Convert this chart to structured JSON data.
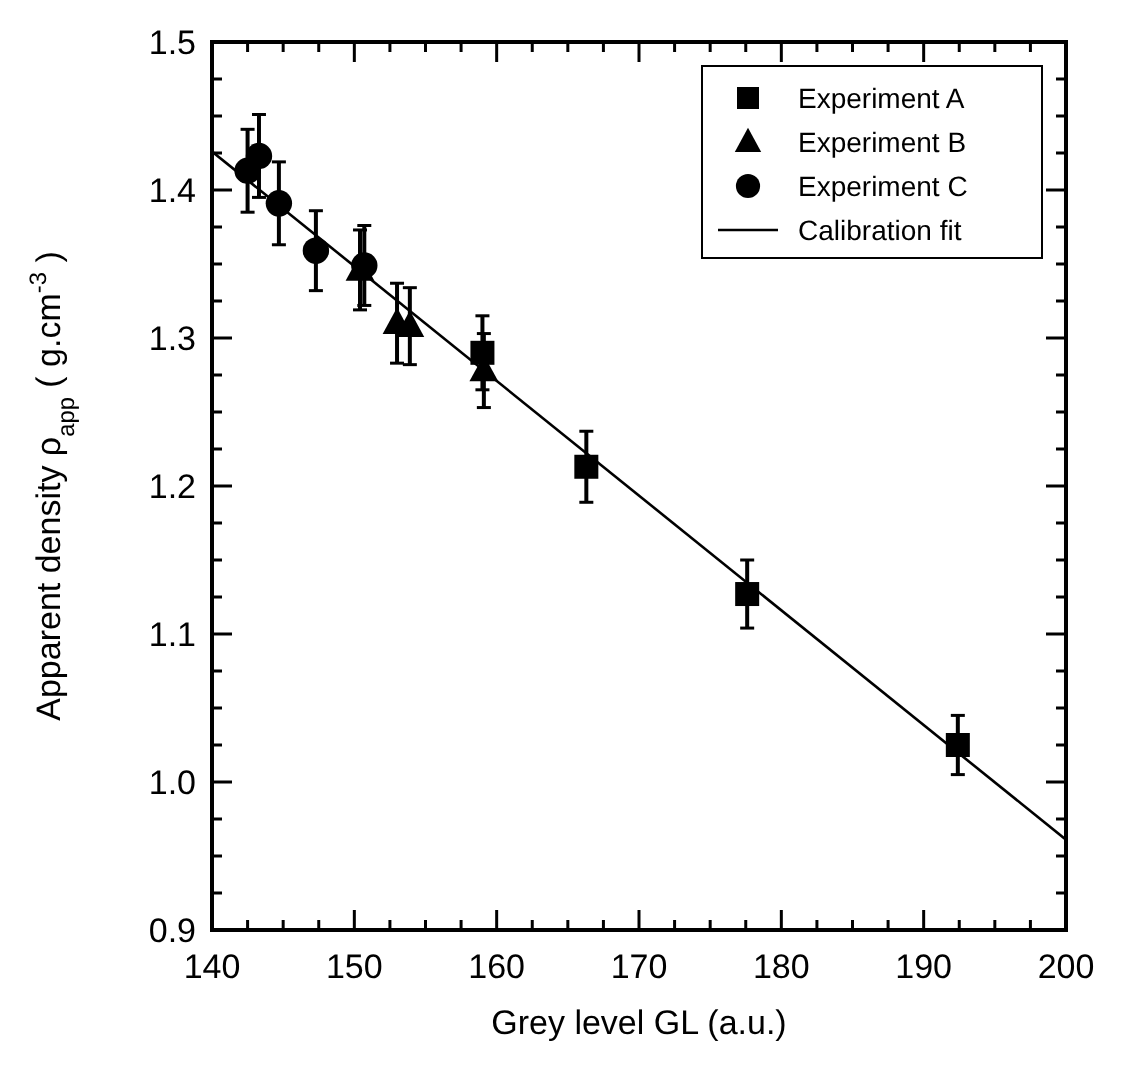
{
  "chart_data": {
    "type": "scatter",
    "xlabel": "Grey level GL (a.u.)",
    "ylabel": "Apparent density  ρ$_{app}$  ( g.cm$^{-3}$ )",
    "xlim": [
      140,
      200
    ],
    "ylim": [
      0.9,
      1.5
    ],
    "xticks": [
      140,
      {
        "value": 142.5,
        "label": null
      },
      {
        "value": 145,
        "label": null
      },
      {
        "value": 147.5,
        "label": null
      },
      150,
      {
        "value": 152.5,
        "label": null
      },
      {
        "value": 155,
        "label": null
      },
      {
        "value": 157.5,
        "label": null
      },
      160,
      {
        "value": 162.5,
        "label": null
      },
      {
        "value": 165,
        "label": null
      },
      {
        "value": 167.5,
        "label": null
      },
      170,
      {
        "value": 172.5,
        "label": null
      },
      {
        "value": 175,
        "label": null
      },
      {
        "value": 177.5,
        "label": null
      },
      180,
      {
        "value": 182.5,
        "label": null
      },
      {
        "value": 185,
        "label": null
      },
      {
        "value": 187.5,
        "label": null
      },
      190,
      {
        "value": 192.5,
        "label": null
      },
      {
        "value": 195,
        "label": null
      },
      {
        "value": 197.5,
        "label": null
      },
      200
    ],
    "yticks": [
      {
        "value": 0.9,
        "label": "0.9"
      },
      {
        "value": 0.925,
        "label": null
      },
      {
        "value": 0.95,
        "label": null
      },
      {
        "value": 0.975,
        "label": null
      },
      {
        "value": 1,
        "label": "1.0"
      },
      {
        "value": 1.025,
        "label": null
      },
      {
        "value": 1.05,
        "label": null
      },
      {
        "value": 1.075,
        "label": null
      },
      {
        "value": 1.1,
        "label": "1.1"
      },
      {
        "value": 1.125,
        "label": null
      },
      {
        "value": 1.15,
        "label": null
      },
      {
        "value": 1.175,
        "label": null
      },
      {
        "value": 1.2,
        "label": "1.2"
      },
      {
        "value": 1.225,
        "label": null
      },
      {
        "value": 1.25,
        "label": null
      },
      {
        "value": 1.275,
        "label": null
      },
      {
        "value": 1.3,
        "label": "1.3"
      },
      {
        "value": 1.325,
        "label": null
      },
      {
        "value": 1.35,
        "label": null
      },
      {
        "value": 1.375,
        "label": null
      },
      {
        "value": 1.4,
        "label": "1.4"
      },
      {
        "value": 1.425,
        "label": null
      },
      {
        "value": 1.45,
        "label": null
      },
      {
        "value": 1.475,
        "label": null
      },
      {
        "value": 1.5,
        "label": "1.5"
      }
    ],
    "grid": false,
    "legend": "top right",
    "series": [
      {
        "name": "Experiment  A",
        "marker": "square",
        "color": "#000000",
        "x": [
          159.0,
          166.3,
          177.6,
          192.4
        ],
        "values": [
          1.29,
          1.213,
          1.127,
          1.025
        ],
        "errors": [
          0.025,
          0.024,
          0.023,
          0.02
        ]
      },
      {
        "name": "Experiment  B",
        "marker": "triangle",
        "color": "#000000",
        "x": [
          150.4,
          153.0,
          153.9,
          159.1
        ],
        "values": [
          1.346,
          1.31,
          1.308,
          1.278
        ],
        "errors": [
          0.027,
          0.027,
          0.026,
          0.025
        ]
      },
      {
        "name": "Experiment  C",
        "marker": "circle",
        "color": "#000000",
        "x": [
          142.5,
          143.3,
          144.7,
          147.3,
          150.7
        ],
        "values": [
          1.413,
          1.423,
          1.391,
          1.359,
          1.349
        ],
        "errors": [
          0.028,
          0.028,
          0.028,
          0.027,
          0.027
        ]
      },
      {
        "name": "Calibration fit",
        "type": "line",
        "marker": "none",
        "line_style": "solid",
        "color": "#000000",
        "x": [
          140,
          200
        ],
        "values": [
          1.426,
          0.961
        ]
      }
    ]
  }
}
